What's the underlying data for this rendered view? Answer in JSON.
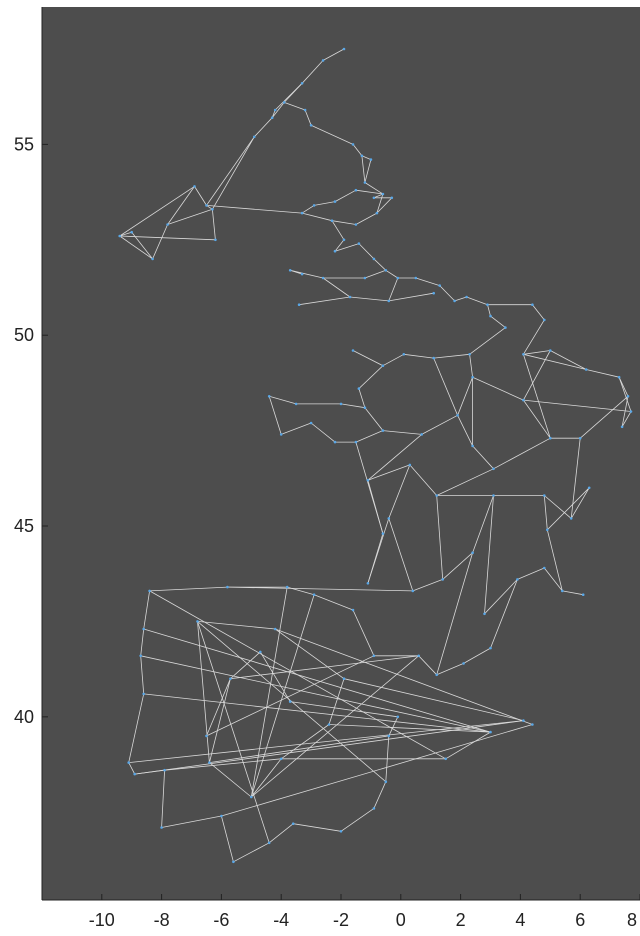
{
  "chart_data": {
    "type": "network-map",
    "title": "",
    "xlabel": "",
    "ylabel": "",
    "xlim": [
      -12,
      8
    ],
    "ylim": [
      35.2,
      58.6
    ],
    "x_ticks": [
      -10,
      -8,
      -6,
      -4,
      -2,
      0,
      2,
      4,
      6,
      8
    ],
    "y_ticks": [
      40,
      45,
      50,
      55
    ],
    "grid": false,
    "legend": "none",
    "colors": {
      "axes_background": "#4d4d4d",
      "edge": "#d9d9d9",
      "node": "#5aa7e6",
      "axis_line": "#222222"
    },
    "nodes": [
      {
        "lon": -1.9,
        "lat": 57.5
      },
      {
        "lon": -2.6,
        "lat": 57.2
      },
      {
        "lon": -3.3,
        "lat": 56.6
      },
      {
        "lon": -3.9,
        "lat": 56.1
      },
      {
        "lon": -4.3,
        "lat": 55.7
      },
      {
        "lon": -4.2,
        "lat": 55.9
      },
      {
        "lon": -4.9,
        "lat": 55.2
      },
      {
        "lon": -3.2,
        "lat": 55.9
      },
      {
        "lon": -3.0,
        "lat": 55.5
      },
      {
        "lon": -1.6,
        "lat": 55.0
      },
      {
        "lon": -1.3,
        "lat": 54.7
      },
      {
        "lon": -1.2,
        "lat": 54.0
      },
      {
        "lon": -0.6,
        "lat": 53.7
      },
      {
        "lon": -1.5,
        "lat": 53.8
      },
      {
        "lon": -2.2,
        "lat": 53.5
      },
      {
        "lon": -2.9,
        "lat": 53.4
      },
      {
        "lon": -3.3,
        "lat": 53.2
      },
      {
        "lon": -2.3,
        "lat": 53.0
      },
      {
        "lon": -1.5,
        "lat": 52.9
      },
      {
        "lon": -0.8,
        "lat": 53.2
      },
      {
        "lon": -1.9,
        "lat": 52.5
      },
      {
        "lon": -2.2,
        "lat": 52.2
      },
      {
        "lon": -1.4,
        "lat": 52.4
      },
      {
        "lon": -0.9,
        "lat": 52.0
      },
      {
        "lon": -0.5,
        "lat": 51.7
      },
      {
        "lon": -0.1,
        "lat": 51.5
      },
      {
        "lon": 0.5,
        "lat": 51.5
      },
      {
        "lon": 1.3,
        "lat": 51.3
      },
      {
        "lon": -1.2,
        "lat": 51.5
      },
      {
        "lon": -2.6,
        "lat": 51.5
      },
      {
        "lon": -3.7,
        "lat": 51.7
      },
      {
        "lon": -3.3,
        "lat": 51.6
      },
      {
        "lon": -1.7,
        "lat": 51.0
      },
      {
        "lon": -3.4,
        "lat": 50.8
      },
      {
        "lon": -0.4,
        "lat": 50.9
      },
      {
        "lon": 1.1,
        "lat": 51.1
      },
      {
        "lon": -0.9,
        "lat": 53.6
      },
      {
        "lon": -0.3,
        "lat": 53.6
      },
      {
        "lon": -1.0,
        "lat": 54.6
      },
      {
        "lon": -6.5,
        "lat": 53.4
      },
      {
        "lon": -6.3,
        "lat": 53.3
      },
      {
        "lon": -6.9,
        "lat": 53.9
      },
      {
        "lon": -9.4,
        "lat": 52.6
      },
      {
        "lon": -9.0,
        "lat": 52.7
      },
      {
        "lon": -8.3,
        "lat": 52.0
      },
      {
        "lon": -7.8,
        "lat": 52.9
      },
      {
        "lon": -6.2,
        "lat": 52.5
      },
      {
        "lon": 1.8,
        "lat": 50.9
      },
      {
        "lon": 2.2,
        "lat": 51.0
      },
      {
        "lon": 2.9,
        "lat": 50.8
      },
      {
        "lon": 3.0,
        "lat": 50.5
      },
      {
        "lon": 3.5,
        "lat": 50.2
      },
      {
        "lon": 4.4,
        "lat": 50.8
      },
      {
        "lon": 4.8,
        "lat": 50.4
      },
      {
        "lon": 4.1,
        "lat": 49.5
      },
      {
        "lon": 5.0,
        "lat": 49.6
      },
      {
        "lon": 6.2,
        "lat": 49.1
      },
      {
        "lon": 7.3,
        "lat": 48.9
      },
      {
        "lon": 7.6,
        "lat": 48.4
      },
      {
        "lon": 7.4,
        "lat": 47.6
      },
      {
        "lon": 7.7,
        "lat": 48.0
      },
      {
        "lon": 6.0,
        "lat": 47.3
      },
      {
        "lon": 5.0,
        "lat": 47.3
      },
      {
        "lon": 4.1,
        "lat": 48.3
      },
      {
        "lon": 2.4,
        "lat": 48.9
      },
      {
        "lon": 2.3,
        "lat": 49.5
      },
      {
        "lon": 1.1,
        "lat": 49.4
      },
      {
        "lon": 0.1,
        "lat": 49.5
      },
      {
        "lon": -1.4,
        "lat": 48.6
      },
      {
        "lon": -0.6,
        "lat": 49.2
      },
      {
        "lon": -1.6,
        "lat": 49.6
      },
      {
        "lon": -1.2,
        "lat": 48.1
      },
      {
        "lon": -2.0,
        "lat": 48.2
      },
      {
        "lon": -3.5,
        "lat": 48.2
      },
      {
        "lon": -4.4,
        "lat": 48.4
      },
      {
        "lon": -4.0,
        "lat": 47.4
      },
      {
        "lon": -3.0,
        "lat": 47.7
      },
      {
        "lon": -2.2,
        "lat": 47.2
      },
      {
        "lon": -1.5,
        "lat": 47.2
      },
      {
        "lon": -0.6,
        "lat": 47.5
      },
      {
        "lon": 0.7,
        "lat": 47.4
      },
      {
        "lon": 1.9,
        "lat": 47.9
      },
      {
        "lon": 2.4,
        "lat": 47.1
      },
      {
        "lon": 3.1,
        "lat": 46.5
      },
      {
        "lon": 1.2,
        "lat": 45.8
      },
      {
        "lon": 0.3,
        "lat": 46.6
      },
      {
        "lon": -1.1,
        "lat": 46.2
      },
      {
        "lon": -0.6,
        "lat": 44.8
      },
      {
        "lon": -0.4,
        "lat": 45.2
      },
      {
        "lon": -1.1,
        "lat": 43.5
      },
      {
        "lon": 0.4,
        "lat": 43.3
      },
      {
        "lon": 1.4,
        "lat": 43.6
      },
      {
        "lon": 2.4,
        "lat": 44.3
      },
      {
        "lon": 3.1,
        "lat": 45.8
      },
      {
        "lon": 4.8,
        "lat": 45.8
      },
      {
        "lon": 5.7,
        "lat": 45.2
      },
      {
        "lon": 6.3,
        "lat": 46.0
      },
      {
        "lon": 4.9,
        "lat": 44.9
      },
      {
        "lon": 5.4,
        "lat": 43.3
      },
      {
        "lon": 6.1,
        "lat": 43.2
      },
      {
        "lon": 4.8,
        "lat": 43.9
      },
      {
        "lon": 3.9,
        "lat": 43.6
      },
      {
        "lon": 2.8,
        "lat": 42.7
      },
      {
        "lon": 3.0,
        "lat": 41.8
      },
      {
        "lon": 2.1,
        "lat": 41.4
      },
      {
        "lon": 1.2,
        "lat": 41.1
      },
      {
        "lon": 0.6,
        "lat": 41.6
      },
      {
        "lon": -0.9,
        "lat": 41.6
      },
      {
        "lon": -1.6,
        "lat": 42.8
      },
      {
        "lon": -2.9,
        "lat": 43.2
      },
      {
        "lon": -3.8,
        "lat": 43.4
      },
      {
        "lon": -5.8,
        "lat": 43.4
      },
      {
        "lon": -8.4,
        "lat": 43.3
      },
      {
        "lon": -8.6,
        "lat": 42.3
      },
      {
        "lon": -8.7,
        "lat": 41.6
      },
      {
        "lon": -8.6,
        "lat": 40.6
      },
      {
        "lon": -9.1,
        "lat": 38.8
      },
      {
        "lon": -8.9,
        "lat": 38.5
      },
      {
        "lon": -7.9,
        "lat": 38.6
      },
      {
        "lon": -8.0,
        "lat": 37.1
      },
      {
        "lon": -6.0,
        "lat": 37.4
      },
      {
        "lon": -5.6,
        "lat": 36.2
      },
      {
        "lon": -4.4,
        "lat": 36.7
      },
      {
        "lon": -3.6,
        "lat": 37.2
      },
      {
        "lon": -2.0,
        "lat": 37.0
      },
      {
        "lon": -0.9,
        "lat": 37.6
      },
      {
        "lon": -0.5,
        "lat": 38.3
      },
      {
        "lon": -0.4,
        "lat": 39.5
      },
      {
        "lon": -0.1,
        "lat": 40.0
      },
      {
        "lon": -3.7,
        "lat": 40.4
      },
      {
        "lon": -4.7,
        "lat": 41.7
      },
      {
        "lon": -5.7,
        "lat": 41.0
      },
      {
        "lon": -6.5,
        "lat": 39.5
      },
      {
        "lon": -4.0,
        "lat": 38.9
      },
      {
        "lon": -2.4,
        "lat": 39.8
      },
      {
        "lon": -1.9,
        "lat": 41.0
      },
      {
        "lon": -4.2,
        "lat": 42.3
      },
      {
        "lon": -6.8,
        "lat": 42.5
      },
      {
        "lon": -6.4,
        "lat": 38.8
      },
      {
        "lon": -5.0,
        "lat": 37.9
      },
      {
        "lon": 1.5,
        "lat": 38.9
      },
      {
        "lon": 3.0,
        "lat": 39.6
      },
      {
        "lon": 4.1,
        "lat": 39.9
      },
      {
        "lon": 4.4,
        "lat": 39.8
      }
    ],
    "edges": [
      [
        0,
        1
      ],
      [
        1,
        2
      ],
      [
        2,
        3
      ],
      [
        2,
        5
      ],
      [
        5,
        4
      ],
      [
        4,
        3
      ],
      [
        4,
        6
      ],
      [
        3,
        7
      ],
      [
        7,
        8
      ],
      [
        8,
        9
      ],
      [
        9,
        10
      ],
      [
        10,
        11
      ],
      [
        11,
        12
      ],
      [
        12,
        13
      ],
      [
        13,
        14
      ],
      [
        14,
        15
      ],
      [
        15,
        16
      ],
      [
        16,
        17
      ],
      [
        17,
        18
      ],
      [
        18,
        19
      ],
      [
        19,
        12
      ],
      [
        17,
        20
      ],
      [
        20,
        21
      ],
      [
        21,
        22
      ],
      [
        22,
        23
      ],
      [
        23,
        24
      ],
      [
        24,
        25
      ],
      [
        25,
        26
      ],
      [
        26,
        27
      ],
      [
        24,
        28
      ],
      [
        28,
        29
      ],
      [
        29,
        30
      ],
      [
        30,
        31
      ],
      [
        29,
        32
      ],
      [
        32,
        33
      ],
      [
        32,
        34
      ],
      [
        34,
        35
      ],
      [
        25,
        34
      ],
      [
        12,
        36
      ],
      [
        36,
        37
      ],
      [
        37,
        19
      ],
      [
        10,
        38
      ],
      [
        38,
        11
      ],
      [
        6,
        39
      ],
      [
        39,
        40
      ],
      [
        39,
        41
      ],
      [
        41,
        42
      ],
      [
        42,
        43
      ],
      [
        43,
        44
      ],
      [
        44,
        45
      ],
      [
        45,
        40
      ],
      [
        40,
        46
      ],
      [
        46,
        42
      ],
      [
        42,
        44
      ],
      [
        41,
        45
      ],
      [
        6,
        40
      ],
      [
        39,
        16
      ],
      [
        27,
        47
      ],
      [
        47,
        48
      ],
      [
        48,
        49
      ],
      [
        49,
        50
      ],
      [
        50,
        51
      ],
      [
        49,
        52
      ],
      [
        52,
        53
      ],
      [
        53,
        54
      ],
      [
        54,
        55
      ],
      [
        55,
        56
      ],
      [
        56,
        57
      ],
      [
        57,
        58
      ],
      [
        58,
        59
      ],
      [
        59,
        60
      ],
      [
        58,
        61
      ],
      [
        61,
        62
      ],
      [
        62,
        63
      ],
      [
        63,
        55
      ],
      [
        62,
        54
      ],
      [
        51,
        65
      ],
      [
        65,
        64
      ],
      [
        64,
        63
      ],
      [
        65,
        66
      ],
      [
        66,
        67
      ],
      [
        67,
        69
      ],
      [
        69,
        70
      ],
      [
        69,
        68
      ],
      [
        68,
        71
      ],
      [
        71,
        72
      ],
      [
        72,
        73
      ],
      [
        73,
        74
      ],
      [
        74,
        75
      ],
      [
        75,
        76
      ],
      [
        76,
        77
      ],
      [
        77,
        78
      ],
      [
        78,
        79
      ],
      [
        79,
        80
      ],
      [
        80,
        81
      ],
      [
        81,
        82
      ],
      [
        82,
        83
      ],
      [
        83,
        62
      ],
      [
        80,
        86
      ],
      [
        86,
        87
      ],
      [
        87,
        78
      ],
      [
        86,
        85
      ],
      [
        85,
        84
      ],
      [
        84,
        83
      ],
      [
        82,
        64
      ],
      [
        81,
        64
      ],
      [
        81,
        66
      ],
      [
        71,
        79
      ],
      [
        87,
        89
      ],
      [
        89,
        88
      ],
      [
        88,
        90
      ],
      [
        90,
        91
      ],
      [
        91,
        92
      ],
      [
        92,
        93
      ],
      [
        93,
        84
      ],
      [
        93,
        94
      ],
      [
        94,
        97
      ],
      [
        97,
        96
      ],
      [
        96,
        95
      ],
      [
        95,
        61
      ],
      [
        94,
        95
      ],
      [
        97,
        98
      ],
      [
        98,
        99
      ],
      [
        98,
        100
      ],
      [
        100,
        101
      ],
      [
        101,
        102
      ],
      [
        102,
        93
      ],
      [
        101,
        103
      ],
      [
        103,
        104
      ],
      [
        104,
        105
      ],
      [
        105,
        106
      ],
      [
        106,
        107
      ],
      [
        107,
        108
      ],
      [
        108,
        109
      ],
      [
        109,
        110
      ],
      [
        110,
        111
      ],
      [
        111,
        90
      ],
      [
        111,
        112
      ],
      [
        112,
        113
      ],
      [
        113,
        114
      ],
      [
        114,
        115
      ],
      [
        115,
        116
      ],
      [
        116,
        117
      ],
      [
        117,
        118
      ],
      [
        118,
        119
      ],
      [
        119,
        120
      ],
      [
        120,
        121
      ],
      [
        121,
        122
      ],
      [
        122,
        123
      ],
      [
        123,
        124
      ],
      [
        124,
        125
      ],
      [
        125,
        126
      ],
      [
        126,
        127
      ],
      [
        127,
        128
      ],
      [
        128,
        129
      ],
      [
        129,
        130
      ],
      [
        130,
        131
      ],
      [
        131,
        132
      ],
      [
        132,
        107
      ],
      [
        131,
        106
      ],
      [
        133,
        134
      ],
      [
        134,
        135
      ],
      [
        135,
        136
      ],
      [
        136,
        137
      ],
      [
        137,
        138
      ],
      [
        138,
        139
      ],
      [
        139,
        133
      ],
      [
        133,
        140
      ],
      [
        140,
        141
      ],
      [
        141,
        134
      ],
      [
        135,
        142
      ],
      [
        142,
        116
      ],
      [
        136,
        143
      ],
      [
        143,
        144
      ],
      [
        144,
        125
      ],
      [
        137,
        126
      ],
      [
        138,
        131
      ],
      [
        139,
        109
      ],
      [
        140,
        112
      ],
      [
        141,
        113
      ],
      [
        142,
        117
      ],
      [
        143,
        120
      ],
      [
        115,
        141
      ],
      [
        118,
        133
      ],
      [
        122,
        137
      ],
      [
        124,
        144
      ],
      [
        127,
        138
      ],
      [
        110,
        139
      ],
      [
        106,
        139
      ],
      [
        114,
        141
      ],
      [
        145,
        146
      ],
      [
        146,
        147
      ],
      [
        147,
        148
      ],
      [
        63,
        60
      ],
      [
        57,
        60
      ],
      [
        54,
        56
      ],
      [
        92,
        105
      ],
      [
        85,
        88
      ],
      [
        91,
        84
      ]
    ]
  }
}
